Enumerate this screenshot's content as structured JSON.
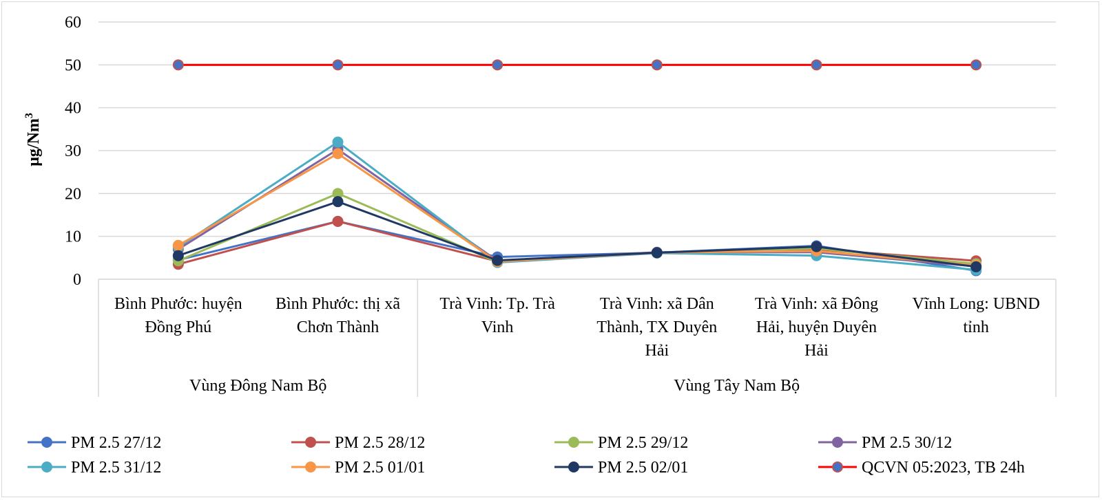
{
  "chart_data": {
    "type": "line",
    "title": "",
    "ylabel": "µg/Nm3",
    "ylabel_main": "µg/Nm",
    "ylabel_sup": "3",
    "ylim": [
      0,
      60
    ],
    "yticks": [
      0,
      10,
      20,
      30,
      40,
      50,
      60
    ],
    "grid": true,
    "legend_position": "bottom",
    "categories": [
      [
        "Bình Phước: huyện",
        "Đồng Phú"
      ],
      [
        "Bình Phước: thị xã",
        "Chơn Thành"
      ],
      [
        "Trà Vinh: Tp. Trà",
        "Vinh"
      ],
      [
        "Trà Vinh: xã Dân",
        "Thành, TX Duyên",
        "Hải"
      ],
      [
        "Trà Vinh: xã Đông",
        "Hải, huyện Duyên",
        "Hải"
      ],
      [
        "Vĩnh Long: UBND",
        "tỉnh"
      ]
    ],
    "groups": [
      {
        "label": "Vùng Đông Nam Bộ",
        "span": [
          0,
          1
        ]
      },
      {
        "label": "Vùng Tây Nam Bộ",
        "span": [
          2,
          5
        ]
      }
    ],
    "series": [
      {
        "name": "PM 2.5 27/12",
        "color": "#4472C4",
        "values": [
          4.5,
          13.5,
          5.2,
          6.2,
          7.8,
          2.0
        ]
      },
      {
        "name": "PM 2.5 28/12",
        "color": "#C0504D",
        "values": [
          3.5,
          13.5,
          4.2,
          6.2,
          7.0,
          4.3
        ]
      },
      {
        "name": "PM 2.5 29/12",
        "color": "#9BBB59",
        "values": [
          4.3,
          20.0,
          4.0,
          6.2,
          7.2,
          3.6
        ]
      },
      {
        "name": "PM 2.5 30/12",
        "color": "#8064A2",
        "values": [
          7.0,
          30.3,
          4.3,
          6.3,
          6.3,
          3.0
        ]
      },
      {
        "name": "PM 2.5 31/12",
        "color": "#4BACC6",
        "values": [
          7.5,
          32.0,
          3.9,
          6.1,
          5.5,
          2.2
        ]
      },
      {
        "name": "PM 2.5 01/01",
        "color": "#F79646",
        "values": [
          7.9,
          29.3,
          4.1,
          6.2,
          6.6,
          3.2
        ]
      },
      {
        "name": "PM 2.5 02/01",
        "color": "#1F3864",
        "values": [
          5.5,
          18.1,
          4.4,
          6.2,
          7.6,
          2.9
        ]
      },
      {
        "name": "QCVN 05:2023, TB 24h",
        "color": "#FF0000",
        "marker_fill": "#4472C4",
        "marker_stroke": "#C0504D",
        "values": [
          50,
          50,
          50,
          50,
          50,
          50
        ]
      }
    ]
  }
}
